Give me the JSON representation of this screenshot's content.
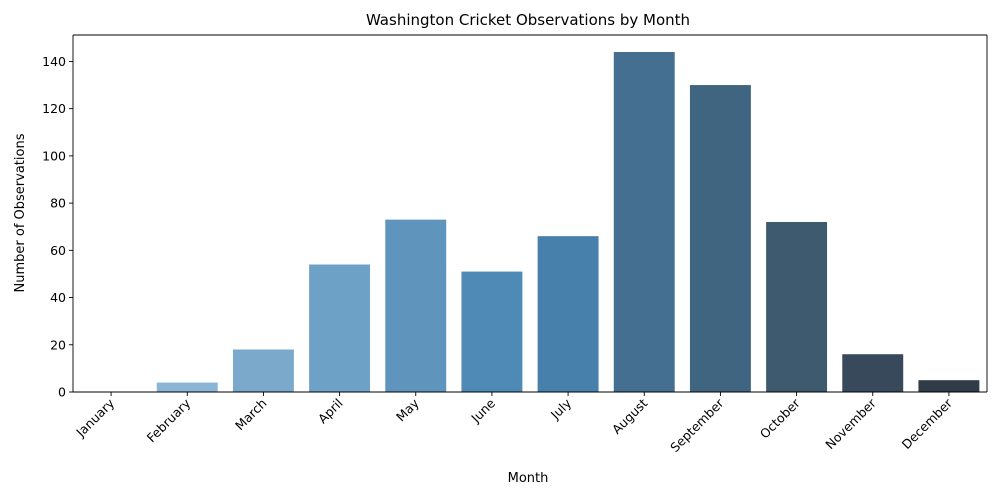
{
  "chart_data": {
    "type": "bar",
    "title": "Washington Cricket Observations by Month",
    "xlabel": "Month",
    "ylabel": "Number of Observations",
    "categories": [
      "January",
      "February",
      "March",
      "April",
      "May",
      "June",
      "July",
      "August",
      "September",
      "October",
      "November",
      "December"
    ],
    "values": [
      0,
      4,
      18,
      54,
      73,
      51,
      66,
      144,
      130,
      72,
      16,
      5
    ],
    "ylim": [
      0,
      151.2
    ],
    "yticks": [
      0,
      20,
      40,
      60,
      80,
      100,
      120,
      140
    ],
    "grid": false,
    "legend": "none",
    "x_tick_rotation": 45,
    "colors": [
      "#8fb8d9",
      "#8ab5d7",
      "#7ba9cc",
      "#6da1c6",
      "#5f95bd",
      "#4f89b5",
      "#4680ab",
      "#446f91",
      "#3f6580",
      "#3d5a6e",
      "#37495a",
      "#2f3b46"
    ]
  }
}
